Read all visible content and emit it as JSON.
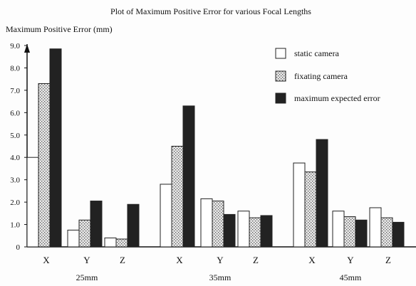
{
  "chart_data": {
    "type": "bar",
    "title": "Plot of Maximum Positive Error for various Focal Lengths",
    "ylabel": "Maximum Positive Error (mm)",
    "xlabel": "",
    "ylim": [
      0,
      9
    ],
    "yticks": [
      "0",
      "1.0",
      "2.0",
      "3.0",
      "4.0",
      "5.0",
      "6.0",
      "7.0",
      "8.0",
      "9.0"
    ],
    "groups": [
      "25mm",
      "35mm",
      "45mm"
    ],
    "categories": [
      "X",
      "Y",
      "Z"
    ],
    "series": [
      {
        "name": "static camera",
        "pattern": "white",
        "values": [
          [
            4.0,
            0.75,
            0.4
          ],
          [
            2.8,
            2.15,
            1.6
          ],
          [
            3.75,
            1.6,
            1.75
          ]
        ]
      },
      {
        "name": "fixating camera",
        "pattern": "dotted",
        "values": [
          [
            7.3,
            1.2,
            0.35
          ],
          [
            4.5,
            2.05,
            1.3
          ],
          [
            3.35,
            1.35,
            1.3
          ]
        ]
      },
      {
        "name": "maximum expected error",
        "pattern": "dark",
        "values": [
          [
            8.85,
            2.05,
            1.9
          ],
          [
            6.3,
            1.45,
            1.4
          ],
          [
            4.8,
            1.2,
            1.1
          ]
        ]
      }
    ],
    "legend_position": "top-right",
    "grid": false
  }
}
